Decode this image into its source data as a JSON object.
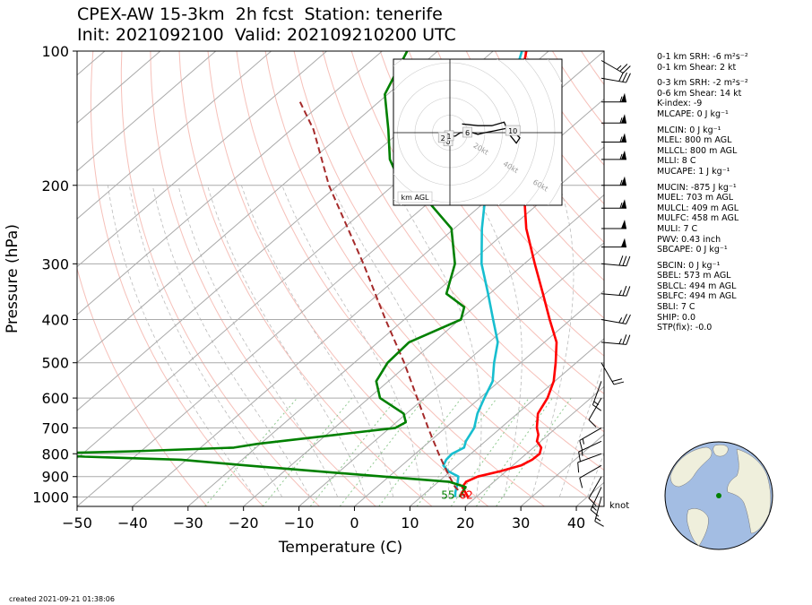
{
  "title": {
    "line1": "CPEX-AW 15-3km  2h fcst  Station: tenerife",
    "line2": "Init: 2021092100  Valid: 202109210200 UTC"
  },
  "chart_data": {
    "type": "line",
    "subtype": "skew-t log-p",
    "xlabel": "Temperature (C)",
    "ylabel": "Pressure (hPa)",
    "xlim": [
      -50,
      45
    ],
    "ylim": [
      1050,
      100
    ],
    "yscale": "log",
    "xticks": [
      -50,
      -40,
      -30,
      -20,
      -10,
      0,
      10,
      20,
      30,
      40
    ],
    "yticks": [
      100,
      200,
      300,
      400,
      500,
      600,
      700,
      800,
      900,
      1000
    ],
    "grid": true,
    "series": [
      {
        "role": "temperature",
        "color": "#ff0000",
        "points": [
          [
            1000,
            18.5
          ],
          [
            975,
            17.0
          ],
          [
            950,
            15.4
          ],
          [
            925,
            15.0
          ],
          [
            900,
            16.0
          ],
          [
            875,
            19.0
          ],
          [
            850,
            21.5
          ],
          [
            825,
            22.3
          ],
          [
            800,
            22.4
          ],
          [
            775,
            21.4
          ],
          [
            750,
            19.3
          ],
          [
            725,
            18.2
          ],
          [
            700,
            16.5
          ],
          [
            650,
            13.7
          ],
          [
            600,
            12.2
          ],
          [
            550,
            9.8
          ],
          [
            500,
            6.3
          ],
          [
            450,
            2.2
          ],
          [
            400,
            -3.8
          ],
          [
            350,
            -10.4
          ],
          [
            300,
            -18.1
          ],
          [
            250,
            -27.0
          ],
          [
            200,
            -36.5
          ],
          [
            175,
            -43.0
          ],
          [
            150,
            -49.2
          ],
          [
            125,
            -56.5
          ],
          [
            100,
            -64.0
          ]
        ]
      },
      {
        "role": "dewpoint",
        "color": "#17becf",
        "points": [
          [
            1000,
            16.2
          ],
          [
            975,
            15.2
          ],
          [
            950,
            14.4
          ],
          [
            925,
            13.5
          ],
          [
            900,
            12.5
          ],
          [
            875,
            9.5
          ],
          [
            850,
            7.5
          ],
          [
            825,
            6.8
          ],
          [
            800,
            6.6
          ],
          [
            775,
            7.5
          ],
          [
            750,
            6.5
          ],
          [
            700,
            5.2
          ],
          [
            650,
            2.8
          ],
          [
            600,
            0.8
          ],
          [
            550,
            -1.2
          ],
          [
            500,
            -4.8
          ],
          [
            450,
            -8.4
          ],
          [
            400,
            -14.0
          ],
          [
            350,
            -20.3
          ],
          [
            300,
            -27.7
          ],
          [
            250,
            -35.0
          ],
          [
            200,
            -43.2
          ],
          [
            175,
            -48.0
          ],
          [
            150,
            -51.6
          ],
          [
            125,
            -58.2
          ],
          [
            100,
            -64.8
          ]
        ]
      },
      {
        "role": "parcel",
        "color": "#a52a2a",
        "dashed": true,
        "points": [
          [
            1000,
            18.0
          ],
          [
            950,
            14.1
          ],
          [
            900,
            10.9
          ],
          [
            850,
            7.6
          ],
          [
            800,
            4.2
          ],
          [
            700,
            -3.1
          ],
          [
            600,
            -11.3
          ],
          [
            500,
            -21.0
          ],
          [
            400,
            -33.4
          ],
          [
            300,
            -49.0
          ],
          [
            200,
            -71.6
          ],
          [
            150,
            -86.0
          ],
          [
            130,
            -94.2
          ]
        ]
      },
      {
        "role": "moisture",
        "color": "#008000",
        "points": [
          [
            1000,
            17.0
          ],
          [
            975,
            16.5
          ],
          [
            950,
            16.0
          ],
          [
            925,
            12.0
          ],
          [
            900,
            -1.0
          ],
          [
            875,
            -14.5
          ],
          [
            850,
            -28.0
          ],
          [
            825,
            -41.0
          ],
          [
            812,
            -59.0
          ],
          [
            800,
            -69.0
          ],
          [
            790,
            -51.5
          ],
          [
            775,
            -34.0
          ],
          [
            760,
            -30.5
          ],
          [
            700,
            -9.0
          ],
          [
            680,
            -8.3
          ],
          [
            650,
            -10.5
          ],
          [
            600,
            -18.0
          ],
          [
            550,
            -22.2
          ],
          [
            500,
            -24.0
          ],
          [
            450,
            -24.4
          ],
          [
            400,
            -19.8
          ],
          [
            375,
            -21.8
          ],
          [
            350,
            -27.8
          ],
          [
            300,
            -32.5
          ],
          [
            250,
            -40.5
          ],
          [
            220,
            -49.5
          ],
          [
            200,
            -58.5
          ],
          [
            175,
            -66.0
          ],
          [
            150,
            -72.5
          ],
          [
            125,
            -80.5
          ],
          [
            100,
            -85.5
          ]
        ]
      }
    ],
    "isobars": [
      100,
      200,
      300,
      400,
      500,
      600,
      700,
      800,
      900,
      1000
    ],
    "surface_labels": [
      {
        "text": "55",
        "color": "#008000",
        "value": 55
      },
      {
        "text": "62",
        "color": "#ff0000",
        "value": 62
      }
    ],
    "wind_units": "knot",
    "wind_barbs": [
      {
        "pressure": 1000,
        "speed_kt": 15,
        "direction_deg": 15
      },
      {
        "pressure": 950,
        "speed_kt": 15,
        "direction_deg": 25
      },
      {
        "pressure": 900,
        "speed_kt": 10,
        "direction_deg": 30
      },
      {
        "pressure": 850,
        "speed_kt": 10,
        "direction_deg": 60
      },
      {
        "pressure": 800,
        "speed_kt": 10,
        "direction_deg": 70
      },
      {
        "pressure": 750,
        "speed_kt": 15,
        "direction_deg": 65
      },
      {
        "pressure": 700,
        "speed_kt": 15,
        "direction_deg": 60
      },
      {
        "pressure": 600,
        "speed_kt": 10,
        "direction_deg": 30
      },
      {
        "pressure": 550,
        "speed_kt": 15,
        "direction_deg": 20
      },
      {
        "pressure": 500,
        "speed_kt": 20,
        "direction_deg": 330
      },
      {
        "pressure": 450,
        "speed_kt": 25,
        "direction_deg": 275
      },
      {
        "pressure": 400,
        "speed_kt": 25,
        "direction_deg": 280
      },
      {
        "pressure": 350,
        "speed_kt": 25,
        "direction_deg": 275
      },
      {
        "pressure": 300,
        "speed_kt": 30,
        "direction_deg": 275
      },
      {
        "pressure": 275,
        "speed_kt": 50,
        "direction_deg": 270
      },
      {
        "pressure": 250,
        "speed_kt": 50,
        "direction_deg": 270
      },
      {
        "pressure": 225,
        "speed_kt": 55,
        "direction_deg": 270
      },
      {
        "pressure": 200,
        "speed_kt": 55,
        "direction_deg": 270
      },
      {
        "pressure": 175,
        "speed_kt": 55,
        "direction_deg": 270
      },
      {
        "pressure": 160,
        "speed_kt": 55,
        "direction_deg": 270
      },
      {
        "pressure": 145,
        "speed_kt": 55,
        "direction_deg": 270
      },
      {
        "pressure": 130,
        "speed_kt": 55,
        "direction_deg": 270
      },
      {
        "pressure": 115,
        "speed_kt": 30,
        "direction_deg": 280
      },
      {
        "pressure": 105,
        "speed_kt": 25,
        "direction_deg": 300
      }
    ],
    "hodograph": {
      "axis_units": "kt",
      "ring_labels": [
        "20kt",
        "40kt",
        "60kt",
        "80kt"
      ],
      "ring_values": [
        20,
        40,
        60,
        80
      ],
      "label": "km AGL",
      "height_markers": [
        {
          "text": "0",
          "u": -1,
          "v": -5
        },
        {
          "text": "1",
          "u": -0.5,
          "v": -2
        },
        {
          "text": "2",
          "u": -4,
          "v": -3
        },
        {
          "text": "6",
          "u": 10,
          "v": 0
        },
        {
          "text": "10",
          "u": 36,
          "v": 1
        }
      ],
      "trace": [
        [
          -1,
          -5
        ],
        [
          -1,
          -3
        ],
        [
          -1,
          -2
        ],
        [
          3,
          -2
        ],
        [
          6,
          0
        ],
        [
          10,
          0
        ],
        [
          13,
          0
        ],
        [
          16,
          -1
        ],
        [
          20,
          0
        ],
        [
          25,
          1
        ],
        [
          30,
          2
        ],
        [
          35,
          3
        ],
        [
          36,
          1
        ],
        [
          40,
          -3
        ],
        [
          38,
          -6
        ],
        [
          34,
          -1
        ],
        [
          31,
          6
        ],
        [
          24,
          4
        ],
        [
          16,
          4
        ],
        [
          7,
          5
        ]
      ]
    }
  },
  "parameters": [
    {
      "key": "srh01",
      "text": "0-1 km SRH: -6 m²s⁻²"
    },
    {
      "key": "shear01",
      "text": "0-1 km Shear: 2 kt"
    },
    {
      "key": "gap1",
      "text": ""
    },
    {
      "key": "srh03",
      "text": "0-3 km SRH: -2 m²s⁻²"
    },
    {
      "key": "shear06",
      "text": "0-6 km Shear: 14 kt"
    },
    {
      "key": "kindex",
      "text": "K-index: -9"
    },
    {
      "key": "mlcape",
      "text": "MLCAPE: 0 J kg⁻¹"
    },
    {
      "key": "gap2",
      "text": ""
    },
    {
      "key": "mlcin",
      "text": "MLCIN: 0 J kg⁻¹"
    },
    {
      "key": "mlel",
      "text": "MLEL: 800 m AGL"
    },
    {
      "key": "mllcl",
      "text": "MLLCL: 800 m AGL"
    },
    {
      "key": "mlli",
      "text": "MLLI: 8 C"
    },
    {
      "key": "mucape",
      "text": "MUCAPE: 1 J kg⁻¹"
    },
    {
      "key": "gap3",
      "text": ""
    },
    {
      "key": "mucin",
      "text": "MUCIN: -875 J kg⁻¹"
    },
    {
      "key": "muel",
      "text": "MUEL: 703 m AGL"
    },
    {
      "key": "mulcl",
      "text": "MULCL: 409 m AGL"
    },
    {
      "key": "mulfc",
      "text": "MULFC: 458 m AGL"
    },
    {
      "key": "muli",
      "text": "MULI: 7 C"
    },
    {
      "key": "pwv",
      "text": "PWV: 0.43 inch"
    },
    {
      "key": "sbcape",
      "text": "SBCAPE: 0 J kg⁻¹"
    },
    {
      "key": "gap4",
      "text": ""
    },
    {
      "key": "sbcin",
      "text": "SBCIN: 0 J kg⁻¹"
    },
    {
      "key": "sbel",
      "text": "SBEL: 573 m AGL"
    },
    {
      "key": "sblcl",
      "text": "SBLCL: 494 m AGL"
    },
    {
      "key": "sblfc",
      "text": "SBLFC: 494 m AGL"
    },
    {
      "key": "sbli",
      "text": "SBLI: 7 C"
    },
    {
      "key": "ship",
      "text": "SHIP: 0.0"
    },
    {
      "key": "stp",
      "text": "STP(fix): -0.0"
    }
  ],
  "created": "created 2021-09-21 01:38:06",
  "wind_unit_label": "knot",
  "colors": {
    "temperature": "#ff0000",
    "dewpoint": "#17becf",
    "parcel": "#a52a2a",
    "moisture": "#008000",
    "isotherm": "#aaaaaa",
    "dry_adiabat": "#f4b0a8",
    "moist_adiabat": "#bbbbbb",
    "mixing_ratio": "#8fc98f",
    "ocean": "#a3bde3",
    "land": "#efefdc"
  }
}
